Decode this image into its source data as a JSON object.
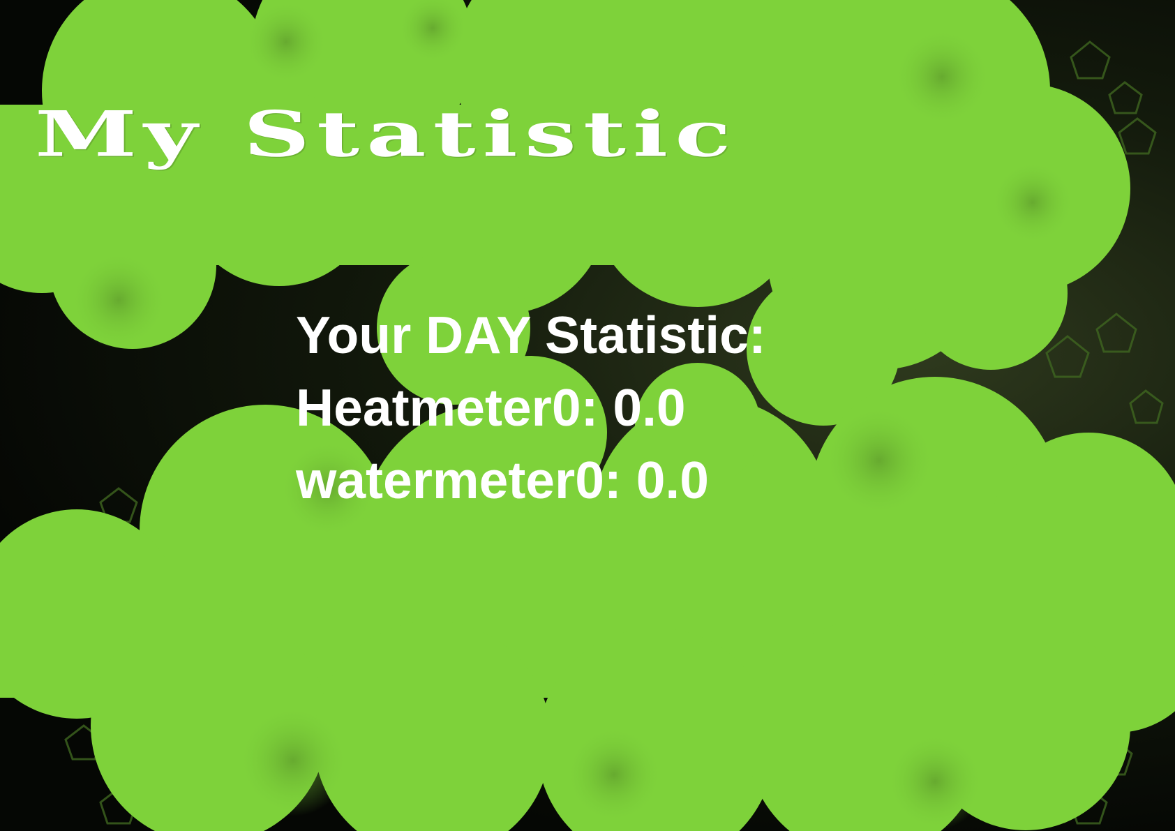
{
  "page": {
    "title": "My Statistic"
  },
  "stats": {
    "heading": "Your DAY Statistic:",
    "heatmeter_label": "Heatmeter0: 0.0",
    "watermeter_label": "watermeter0: 0.0"
  },
  "colors": {
    "splash_green": "#7ed23a",
    "splash_green_dark": "#5ea22a",
    "background": "#0b0f08",
    "text": "#ffffff"
  }
}
